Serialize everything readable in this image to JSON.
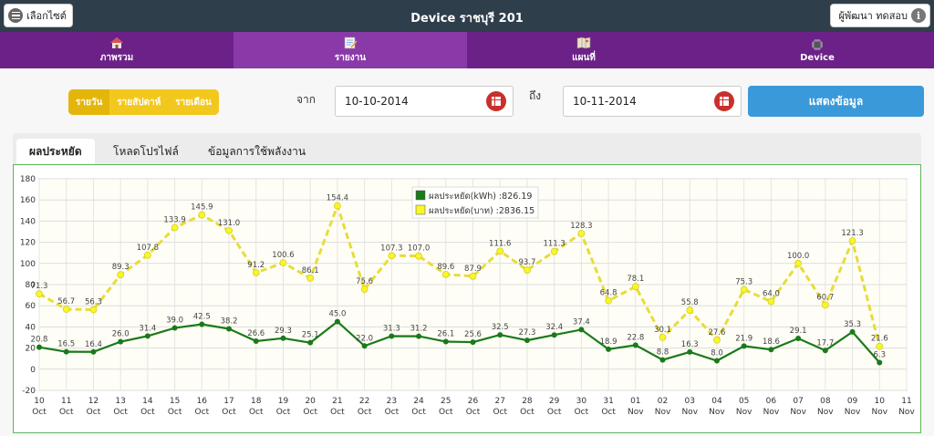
{
  "header": {
    "select_site_label": "เลือกไซต์",
    "title": "Device ราชบุรี 201",
    "developer_label": "ผู้พัฒนา ทดสอบ"
  },
  "nav": {
    "items": [
      {
        "label": "ภาพรวม",
        "icon": "home-icon"
      },
      {
        "label": "รายงาน",
        "icon": "report-icon"
      },
      {
        "label": "แผนที่",
        "icon": "map-icon"
      },
      {
        "label": "Device",
        "icon": "device-chip-icon"
      }
    ],
    "active_index": 1
  },
  "period": {
    "options": [
      "รายวัน",
      "รายสัปดาห์",
      "รายเดือน"
    ],
    "active_index": 0
  },
  "filters": {
    "from_label": "จาก",
    "from_date": "10-10-2014",
    "to_label": "ถึง",
    "to_date": "10-11-2014",
    "show_button": "แสดงข้อมูล"
  },
  "tabs": {
    "items": [
      "ผลประหยัด",
      "โหลดโปรไฟล์",
      "ข้อมูลการใช้พลังงาน"
    ],
    "active_index": 0
  },
  "chart_data": {
    "type": "line",
    "colors": {
      "kwh": "#1a7a1a",
      "baht": "#f7f727",
      "baht_stroke": "#e8dc3a"
    },
    "legend": [
      {
        "label": "ผลประหยัด(kWh) :826.19"
      },
      {
        "label": "ผลประหยัด(บาท) :2836.15"
      }
    ],
    "legend_position": "top-center",
    "grid": true,
    "ylim": [
      -20,
      180
    ],
    "yticks": [
      "-20",
      "0",
      "20",
      "40",
      "60",
      "80",
      "100",
      "120",
      "140",
      "160",
      "180"
    ],
    "x_days": [
      "10",
      "11",
      "12",
      "13",
      "14",
      "15",
      "16",
      "17",
      "18",
      "19",
      "20",
      "21",
      "22",
      "23",
      "24",
      "25",
      "26",
      "27",
      "28",
      "29",
      "30",
      "31",
      "01",
      "02",
      "03",
      "04",
      "05",
      "06",
      "07",
      "08",
      "09",
      "10",
      "11"
    ],
    "x_months": [
      "Oct",
      "Oct",
      "Oct",
      "Oct",
      "Oct",
      "Oct",
      "Oct",
      "Oct",
      "Oct",
      "Oct",
      "Oct",
      "Oct",
      "Oct",
      "Oct",
      "Oct",
      "Oct",
      "Oct",
      "Oct",
      "Oct",
      "Oct",
      "Oct",
      "Oct",
      "Nov",
      "Nov",
      "Nov",
      "Nov",
      "Nov",
      "Nov",
      "Nov",
      "Nov",
      "Nov",
      "Nov",
      "Nov"
    ],
    "series": [
      {
        "name": "ผลประหยัด(kWh)",
        "values": [
          20.8,
          16.5,
          16.4,
          26.0,
          31.4,
          39.0,
          42.5,
          38.2,
          26.6,
          29.3,
          25.1,
          45.0,
          22.0,
          31.3,
          31.2,
          26.1,
          25.6,
          32.5,
          27.3,
          32.4,
          37.4,
          18.9,
          22.8,
          8.8,
          16.3,
          8.0,
          21.9,
          18.6,
          29.1,
          17.7,
          35.3,
          6.3
        ],
        "labels": [
          "20.8",
          "16.5",
          "16.4",
          "26.0",
          "31.4",
          "39.0",
          "42.5",
          "38.2",
          "26.6",
          "29.3",
          "25.1",
          "45.0",
          "22.0",
          "31.3",
          "31.2",
          "26.1",
          "25.6",
          "32.5",
          "27.3",
          "32.4",
          "37.4",
          "18.9",
          "22.8",
          "8.8",
          "16.3",
          "8.0",
          "21.9",
          "18.6",
          "29.1",
          "17.7",
          "35.3",
          "6.3"
        ]
      },
      {
        "name": "ผลประหยัด(บาท)",
        "values": [
          71.3,
          56.7,
          56.3,
          89.3,
          107.8,
          133.9,
          145.9,
          131.0,
          91.2,
          100.6,
          86.1,
          154.4,
          75.6,
          107.3,
          107.0,
          89.6,
          87.9,
          111.6,
          93.7,
          111.3,
          128.3,
          64.8,
          78.1,
          30.1,
          55.8,
          27.6,
          75.3,
          64.0,
          100.0,
          60.7,
          121.3,
          21.6
        ],
        "labels": [
          "71.3",
          "56.7",
          "56.3",
          "89.3",
          "107.8",
          "133.9",
          "145.9",
          "131.0",
          "91.2",
          "100.6",
          "86.1",
          "154.4",
          "75.6",
          "107.3",
          "107.0",
          "89.6",
          "87.9",
          "111.6",
          "93.7",
          "111.3",
          "128.3",
          "64.8",
          "78.1",
          "30.1",
          "55.8",
          "27.6",
          "75.3",
          "64.0",
          "100.0",
          "60.7",
          "121.3",
          "21.6"
        ]
      }
    ]
  }
}
